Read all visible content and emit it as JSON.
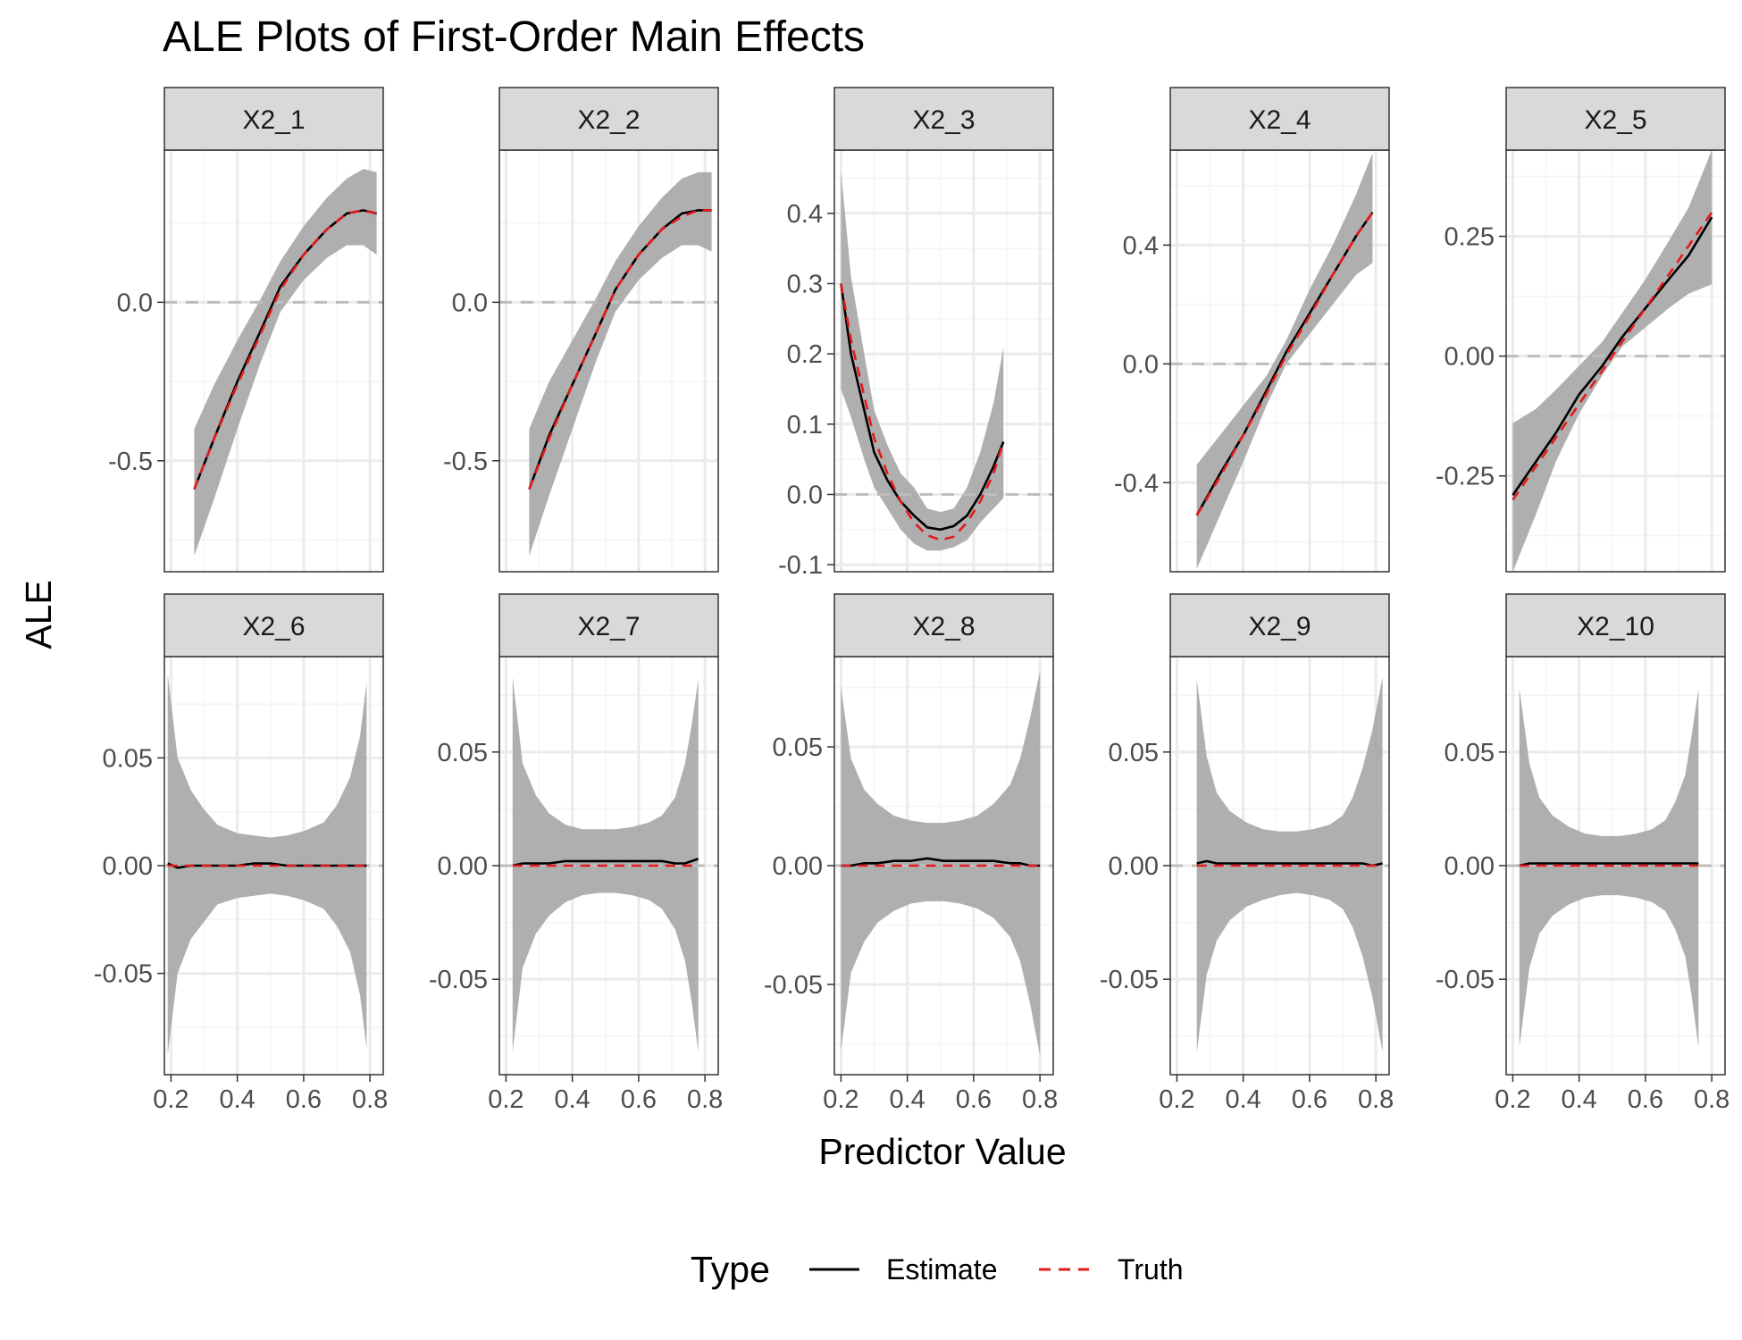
{
  "colors": {
    "estimate": "#000000",
    "truth": "#e41a1c",
    "band": "#a6a6a6",
    "strip_fill": "#d9d9d9",
    "grid_major": "#ebebeb",
    "grid_minor": "#f4f4f4",
    "zero_line": "#bdbdbd"
  },
  "chart_data": {
    "type": "line",
    "title": "ALE Plots of First-Order Main Effects",
    "xlabel": "Predictor Value",
    "ylabel": "ALE",
    "grid": true,
    "legend": {
      "title": "Type",
      "position": "bottom",
      "entries": [
        {
          "label": "Estimate",
          "linetype": "solid",
          "color": "#000000"
        },
        {
          "label": "Truth",
          "linetype": "dashed",
          "color": "#e41a1c"
        }
      ]
    },
    "x_ticks": [
      "0.2",
      "0.4",
      "0.6",
      "0.8"
    ],
    "xlim": [
      0.18,
      0.84
    ],
    "panels": [
      {
        "name": "X2_1",
        "ylim": [
          -0.85,
          0.48
        ],
        "y_ticks": [
          -0.5,
          0.0
        ],
        "y_tick_labels": [
          "-0.5",
          "0.0"
        ],
        "x": [
          0.27,
          0.33,
          0.4,
          0.47,
          0.53,
          0.6,
          0.67,
          0.73,
          0.78,
          0.82
        ],
        "estimate": [
          -0.59,
          -0.43,
          -0.25,
          -0.09,
          0.05,
          0.15,
          0.23,
          0.28,
          0.29,
          0.28
        ],
        "truth": [
          -0.59,
          -0.43,
          -0.26,
          -0.1,
          0.04,
          0.15,
          0.23,
          0.28,
          0.29,
          0.28
        ],
        "lower": [
          -0.8,
          -0.62,
          -0.4,
          -0.19,
          -0.03,
          0.07,
          0.14,
          0.18,
          0.18,
          0.15
        ],
        "upper": [
          -0.4,
          -0.26,
          -0.12,
          0.01,
          0.13,
          0.24,
          0.33,
          0.39,
          0.42,
          0.41
        ]
      },
      {
        "name": "X2_2",
        "ylim": [
          -0.85,
          0.48
        ],
        "y_ticks": [
          -0.5,
          0.0
        ],
        "y_tick_labels": [
          "-0.5",
          "0.0"
        ],
        "x": [
          0.27,
          0.33,
          0.4,
          0.47,
          0.53,
          0.6,
          0.67,
          0.73,
          0.78,
          0.82
        ],
        "estimate": [
          -0.59,
          -0.42,
          -0.26,
          -0.1,
          0.04,
          0.15,
          0.23,
          0.28,
          0.29,
          0.29
        ],
        "truth": [
          -0.59,
          -0.43,
          -0.26,
          -0.1,
          0.04,
          0.15,
          0.23,
          0.27,
          0.29,
          0.29
        ],
        "lower": [
          -0.8,
          -0.61,
          -0.4,
          -0.19,
          -0.03,
          0.07,
          0.14,
          0.18,
          0.18,
          0.16
        ],
        "upper": [
          -0.4,
          -0.25,
          -0.12,
          0.01,
          0.13,
          0.24,
          0.33,
          0.39,
          0.41,
          0.41
        ]
      },
      {
        "name": "X2_3",
        "ylim": [
          -0.11,
          0.49
        ],
        "y_ticks": [
          -0.1,
          0.0,
          0.1,
          0.2,
          0.3,
          0.4
        ],
        "y_tick_labels": [
          "-0.1",
          "0.0",
          "0.1",
          "0.2",
          "0.3",
          "0.4"
        ],
        "x": [
          0.2,
          0.23,
          0.27,
          0.3,
          0.34,
          0.38,
          0.42,
          0.46,
          0.5,
          0.54,
          0.58,
          0.62,
          0.66,
          0.69
        ],
        "estimate": [
          0.3,
          0.2,
          0.12,
          0.06,
          0.02,
          -0.01,
          -0.03,
          -0.047,
          -0.05,
          -0.045,
          -0.03,
          0.0,
          0.04,
          0.075
        ],
        "truth": [
          0.3,
          0.22,
          0.14,
          0.08,
          0.03,
          -0.01,
          -0.04,
          -0.058,
          -0.065,
          -0.06,
          -0.04,
          -0.01,
          0.03,
          0.075
        ],
        "lower": [
          0.15,
          0.11,
          0.05,
          0.01,
          -0.02,
          -0.05,
          -0.07,
          -0.08,
          -0.08,
          -0.075,
          -0.065,
          -0.04,
          -0.02,
          -0.005
        ],
        "upper": [
          0.46,
          0.31,
          0.2,
          0.12,
          0.07,
          0.03,
          0.01,
          -0.02,
          -0.025,
          -0.02,
          0.01,
          0.06,
          0.13,
          0.21
        ]
      },
      {
        "name": "X2_4",
        "ylim": [
          -0.7,
          0.72
        ],
        "y_ticks": [
          -0.4,
          0.0,
          0.4
        ],
        "y_tick_labels": [
          "-0.4",
          "0.0",
          "0.4"
        ],
        "x": [
          0.26,
          0.33,
          0.4,
          0.47,
          0.53,
          0.6,
          0.67,
          0.74,
          0.79
        ],
        "estimate": [
          -0.51,
          -0.37,
          -0.24,
          -0.09,
          0.04,
          0.17,
          0.3,
          0.43,
          0.51
        ],
        "truth": [
          -0.51,
          -0.38,
          -0.24,
          -0.1,
          0.03,
          0.16,
          0.3,
          0.43,
          0.51
        ],
        "lower": [
          -0.69,
          -0.51,
          -0.33,
          -0.14,
          0.0,
          0.1,
          0.2,
          0.3,
          0.34
        ],
        "upper": [
          -0.34,
          -0.24,
          -0.14,
          -0.04,
          0.08,
          0.25,
          0.4,
          0.57,
          0.71
        ]
      },
      {
        "name": "X2_5",
        "ylim": [
          -0.45,
          0.43
        ],
        "y_ticks": [
          -0.25,
          0.0,
          0.25
        ],
        "y_tick_labels": [
          "-0.25",
          "0.00",
          "0.25"
        ],
        "x": [
          0.2,
          0.27,
          0.33,
          0.4,
          0.47,
          0.53,
          0.6,
          0.67,
          0.73,
          0.8
        ],
        "estimate": [
          -0.29,
          -0.22,
          -0.16,
          -0.08,
          -0.02,
          0.04,
          0.1,
          0.16,
          0.21,
          0.29
        ],
        "truth": [
          -0.3,
          -0.23,
          -0.17,
          -0.1,
          -0.03,
          0.03,
          0.1,
          0.17,
          0.23,
          0.3
        ],
        "lower": [
          -0.45,
          -0.33,
          -0.22,
          -0.12,
          -0.04,
          0.02,
          0.06,
          0.1,
          0.13,
          0.15
        ],
        "upper": [
          -0.14,
          -0.11,
          -0.07,
          -0.02,
          0.03,
          0.09,
          0.16,
          0.24,
          0.31,
          0.43
        ]
      },
      {
        "name": "X2_6",
        "ylim": [
          -0.097,
          0.097
        ],
        "y_ticks": [
          -0.05,
          0.0,
          0.05
        ],
        "y_tick_labels": [
          "-0.05",
          "0.00",
          "0.05"
        ],
        "x": [
          0.19,
          0.22,
          0.26,
          0.3,
          0.34,
          0.4,
          0.45,
          0.5,
          0.55,
          0.6,
          0.66,
          0.7,
          0.74,
          0.77,
          0.79
        ],
        "estimate": [
          0.001,
          -0.001,
          0.0,
          0.0,
          0.0,
          0.0,
          0.001,
          0.001,
          0.0,
          0.0,
          0.0,
          0.0,
          0.0,
          0.0,
          0.0
        ],
        "truth": [
          0.0,
          0.0,
          0.0,
          0.0,
          0.0,
          0.0,
          0.0,
          0.0,
          0.0,
          0.0,
          0.0,
          0.0,
          0.0,
          0.0,
          0.0
        ],
        "lower": [
          -0.088,
          -0.05,
          -0.034,
          -0.026,
          -0.018,
          -0.015,
          -0.014,
          -0.013,
          -0.014,
          -0.016,
          -0.02,
          -0.028,
          -0.04,
          -0.06,
          -0.085
        ],
        "upper": [
          0.089,
          0.05,
          0.035,
          0.026,
          0.019,
          0.015,
          0.014,
          0.013,
          0.014,
          0.016,
          0.02,
          0.028,
          0.041,
          0.06,
          0.085
        ]
      },
      {
        "name": "X2_7",
        "ylim": [
          -0.092,
          0.092
        ],
        "y_ticks": [
          -0.05,
          0.0,
          0.05
        ],
        "y_tick_labels": [
          "-0.05",
          "0.00",
          "0.05"
        ],
        "x": [
          0.22,
          0.25,
          0.29,
          0.33,
          0.38,
          0.43,
          0.48,
          0.53,
          0.58,
          0.63,
          0.67,
          0.71,
          0.74,
          0.76,
          0.78
        ],
        "estimate": [
          0.0,
          0.001,
          0.001,
          0.001,
          0.002,
          0.002,
          0.002,
          0.002,
          0.002,
          0.002,
          0.002,
          0.001,
          0.001,
          0.002,
          0.003
        ],
        "truth": [
          0.0,
          0.0,
          0.0,
          0.0,
          0.0,
          0.0,
          0.0,
          0.0,
          0.0,
          0.0,
          0.0,
          0.0,
          0.0,
          0.0,
          0.0
        ],
        "lower": [
          -0.082,
          -0.045,
          -0.03,
          -0.022,
          -0.016,
          -0.013,
          -0.012,
          -0.012,
          -0.013,
          -0.015,
          -0.019,
          -0.028,
          -0.042,
          -0.06,
          -0.082
        ],
        "upper": [
          0.083,
          0.045,
          0.031,
          0.023,
          0.018,
          0.016,
          0.016,
          0.016,
          0.017,
          0.019,
          0.022,
          0.03,
          0.045,
          0.062,
          0.082
        ]
      },
      {
        "name": "X2_8",
        "ylim": [
          -0.088,
          0.088
        ],
        "y_ticks": [
          -0.05,
          0.0,
          0.05
        ],
        "y_tick_labels": [
          "-0.05",
          "0.00",
          "0.05"
        ],
        "x": [
          0.2,
          0.23,
          0.27,
          0.31,
          0.36,
          0.41,
          0.46,
          0.51,
          0.56,
          0.61,
          0.66,
          0.71,
          0.74,
          0.77,
          0.8
        ],
        "estimate": [
          0.0,
          0.0,
          0.001,
          0.001,
          0.002,
          0.002,
          0.003,
          0.002,
          0.002,
          0.002,
          0.002,
          0.001,
          0.001,
          0.0,
          0.0
        ],
        "truth": [
          0.0,
          0.0,
          0.0,
          0.0,
          0.0,
          0.0,
          0.0,
          0.0,
          0.0,
          0.0,
          0.0,
          0.0,
          0.0,
          0.0,
          0.0
        ],
        "lower": [
          -0.078,
          -0.045,
          -0.032,
          -0.024,
          -0.019,
          -0.016,
          -0.015,
          -0.015,
          -0.016,
          -0.018,
          -0.022,
          -0.03,
          -0.04,
          -0.058,
          -0.08
        ],
        "upper": [
          0.075,
          0.045,
          0.032,
          0.026,
          0.021,
          0.019,
          0.018,
          0.018,
          0.019,
          0.021,
          0.026,
          0.034,
          0.045,
          0.062,
          0.082
        ]
      },
      {
        "name": "X2_9",
        "ylim": [
          -0.092,
          0.092
        ],
        "y_ticks": [
          -0.05,
          0.0,
          0.05
        ],
        "y_tick_labels": [
          "-0.05",
          "0.00",
          "0.05"
        ],
        "x": [
          0.26,
          0.29,
          0.32,
          0.36,
          0.41,
          0.46,
          0.51,
          0.56,
          0.61,
          0.66,
          0.7,
          0.73,
          0.76,
          0.79,
          0.82
        ],
        "estimate": [
          0.001,
          0.002,
          0.001,
          0.001,
          0.001,
          0.001,
          0.001,
          0.001,
          0.001,
          0.001,
          0.001,
          0.001,
          0.001,
          0.0,
          0.001
        ],
        "truth": [
          0.0,
          0.0,
          0.0,
          0.0,
          0.0,
          0.0,
          0.0,
          0.0,
          0.0,
          0.0,
          0.0,
          0.0,
          0.0,
          0.0,
          0.0
        ],
        "lower": [
          -0.082,
          -0.048,
          -0.033,
          -0.024,
          -0.018,
          -0.015,
          -0.013,
          -0.012,
          -0.013,
          -0.015,
          -0.019,
          -0.027,
          -0.04,
          -0.058,
          -0.082
        ],
        "upper": [
          0.082,
          0.048,
          0.032,
          0.024,
          0.019,
          0.016,
          0.015,
          0.015,
          0.016,
          0.018,
          0.022,
          0.03,
          0.043,
          0.06,
          0.083
        ]
      },
      {
        "name": "X2_10",
        "ylim": [
          -0.092,
          0.092
        ],
        "y_ticks": [
          -0.05,
          0.0,
          0.05
        ],
        "y_tick_labels": [
          "-0.05",
          "0.00",
          "0.05"
        ],
        "x": [
          0.22,
          0.25,
          0.28,
          0.32,
          0.37,
          0.42,
          0.47,
          0.52,
          0.57,
          0.62,
          0.66,
          0.69,
          0.72,
          0.74,
          0.76
        ],
        "estimate": [
          0.0,
          0.001,
          0.001,
          0.001,
          0.001,
          0.001,
          0.001,
          0.001,
          0.001,
          0.001,
          0.001,
          0.001,
          0.001,
          0.001,
          0.001
        ],
        "truth": [
          0.0,
          0.0,
          0.0,
          0.0,
          0.0,
          0.0,
          0.0,
          0.0,
          0.0,
          0.0,
          0.0,
          0.0,
          0.0,
          0.0,
          0.0
        ],
        "lower": [
          -0.08,
          -0.045,
          -0.03,
          -0.022,
          -0.017,
          -0.014,
          -0.013,
          -0.013,
          -0.014,
          -0.016,
          -0.02,
          -0.028,
          -0.04,
          -0.058,
          -0.08
        ],
        "upper": [
          0.078,
          0.045,
          0.03,
          0.022,
          0.017,
          0.014,
          0.013,
          0.013,
          0.014,
          0.016,
          0.02,
          0.028,
          0.04,
          0.058,
          0.078
        ]
      }
    ]
  }
}
